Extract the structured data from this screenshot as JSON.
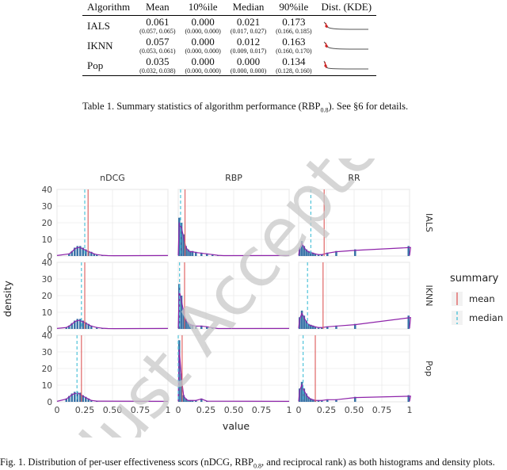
{
  "table": {
    "headers": [
      "Algorithm",
      "Mean",
      "10%ile",
      "Median",
      "90%ile",
      "Dist. (KDE)"
    ],
    "rows": [
      {
        "name": "IALS",
        "mean": "0.061",
        "mean_ci": "(0.057, 0.065)",
        "p10": "0.000",
        "p10_ci": "(0.000, 0.000)",
        "median": "0.021",
        "median_ci": "(0.017, 0.027)",
        "p90": "0.173",
        "p90_ci": "(0.166, 0.185)"
      },
      {
        "name": "IKNN",
        "mean": "0.057",
        "mean_ci": "(0.053, 0.061)",
        "p10": "0.000",
        "p10_ci": "(0.000, 0.000)",
        "median": "0.012",
        "median_ci": "(0.009, 0.017)",
        "p90": "0.163",
        "p90_ci": "(0.160, 0.170)"
      },
      {
        "name": "Pop",
        "mean": "0.035",
        "mean_ci": "(0.032, 0.038)",
        "p10": "0.000",
        "p10_ci": "(0.000, 0.000)",
        "median": "0.000",
        "median_ci": "(0.000, 0.000)",
        "p90": "0.134",
        "p90_ci": "(0.128, 0.160)"
      }
    ],
    "caption": {
      "prefix": "Table 1.  Summary statistics of algorithm performance (RBP",
      "sub": "0.8",
      "suffix": "). See §6 for details."
    }
  },
  "figure": {
    "col_facets": [
      "nDCG",
      "RBP",
      "RR"
    ],
    "row_facets": [
      "IALS",
      "IKNN",
      "Pop"
    ],
    "y_axis_label": "density",
    "x_axis_label": "value",
    "y_ticks": [
      "0",
      "10",
      "20",
      "30",
      "40"
    ],
    "x_ticks": [
      "0",
      "0.25",
      "0.50",
      "0.75",
      "1"
    ],
    "legend": {
      "title": "summary",
      "items": [
        {
          "label": "mean",
          "color": "#e06666"
        },
        {
          "label": "median",
          "color": "#4fc3d9"
        }
      ]
    },
    "watermark": "Just Accepted",
    "caption": {
      "prefix": "Fig. 1.  Distribution of per-user effectiveness scors (nDCG, RBP",
      "sub": "0.8",
      "suffix": ", and reciprocal rank) as both histograms and density plots."
    },
    "colors": {
      "hist": "#3a74a8",
      "kde": "#8e24aa",
      "mean": "#e06666",
      "median": "#4fc3d9",
      "panel_bg": "#ffffff",
      "grid": "#ebebeb",
      "watermark": "#c8c8c8"
    }
  },
  "chart_data": [
    {
      "type": "bar",
      "metric": "nDCG",
      "algorithm": "IALS",
      "x": [
        0.1,
        0.125,
        0.15,
        0.175,
        0.2,
        0.225,
        0.25,
        0.275,
        0.3,
        0.325,
        0.35,
        0.4,
        0.45,
        0.5
      ],
      "values": [
        1.5,
        3,
        5,
        6,
        6,
        5,
        4,
        3,
        2.5,
        1.5,
        1,
        0.5,
        0.3,
        0.2
      ],
      "mean": 0.28,
      "median": 0.25,
      "xlim": [
        0,
        1
      ],
      "ylim": [
        0,
        40
      ]
    },
    {
      "type": "bar",
      "metric": "nDCG",
      "algorithm": "IKNN",
      "x": [
        0.075,
        0.1,
        0.125,
        0.15,
        0.175,
        0.2,
        0.225,
        0.25,
        0.275,
        0.3,
        0.35,
        0.4,
        0.45,
        0.5
      ],
      "values": [
        1,
        2,
        3.5,
        5,
        6,
        6,
        5,
        4,
        3,
        2,
        1,
        0.5,
        0.3,
        0.2
      ],
      "mean": 0.25,
      "median": 0.22,
      "xlim": [
        0,
        1
      ],
      "ylim": [
        0,
        40
      ]
    },
    {
      "type": "bar",
      "metric": "nDCG",
      "algorithm": "Pop",
      "x": [
        0.075,
        0.1,
        0.125,
        0.15,
        0.175,
        0.2,
        0.225,
        0.25,
        0.275,
        0.3,
        0.35
      ],
      "values": [
        2,
        3.5,
        5,
        6,
        6,
        5.5,
        4,
        3,
        2,
        1,
        0.5
      ],
      "mean": 0.22,
      "median": 0.18,
      "xlim": [
        0,
        1
      ],
      "ylim": [
        0,
        40
      ]
    },
    {
      "type": "bar",
      "metric": "RBP",
      "algorithm": "IALS",
      "x": [
        0.0,
        0.02,
        0.04,
        0.06,
        0.08,
        0.1,
        0.12,
        0.15,
        0.2,
        0.25,
        0.3,
        0.35,
        0.4
      ],
      "values": [
        23,
        20,
        13,
        6,
        4,
        3,
        3,
        2.5,
        2,
        1.5,
        1,
        0.5,
        0.3
      ],
      "mean": 0.061,
      "median": 0.021,
      "xlim": [
        0,
        1
      ],
      "ylim": [
        0,
        40
      ]
    },
    {
      "type": "bar",
      "metric": "RBP",
      "algorithm": "IKNN",
      "x": [
        0.0,
        0.02,
        0.04,
        0.06,
        0.08,
        0.1,
        0.12,
        0.15,
        0.2,
        0.25,
        0.3,
        0.35
      ],
      "values": [
        27,
        20,
        12,
        6,
        4,
        3,
        2.5,
        2,
        2,
        1.5,
        0.8,
        0.3
      ],
      "mean": 0.057,
      "median": 0.012,
      "xlim": [
        0,
        1
      ],
      "ylim": [
        0,
        40
      ]
    },
    {
      "type": "bar",
      "metric": "RBP",
      "algorithm": "Pop",
      "x": [
        0.0,
        0.02,
        0.04,
        0.06,
        0.08,
        0.1,
        0.12,
        0.15,
        0.2,
        0.25
      ],
      "values": [
        37,
        17,
        4,
        2,
        1,
        1,
        1,
        1,
        2,
        0.5
      ],
      "mean": 0.035,
      "median": 0.0,
      "xlim": [
        0,
        1
      ],
      "ylim": [
        0,
        40
      ]
    },
    {
      "type": "bar",
      "metric": "RR",
      "algorithm": "IALS",
      "x": [
        0.0,
        0.02,
        0.04,
        0.06,
        0.08,
        0.1,
        0.12,
        0.14,
        0.17,
        0.2,
        0.25,
        0.33,
        0.5,
        1.0
      ],
      "values": [
        5,
        9,
        6,
        4,
        3,
        2.5,
        2,
        1.5,
        1,
        1,
        2,
        3,
        4,
        6
      ],
      "mean": 0.23,
      "median": 0.11,
      "xlim": [
        0,
        1
      ],
      "ylim": [
        0,
        40
      ]
    },
    {
      "type": "bar",
      "metric": "RR",
      "algorithm": "IKNN",
      "x": [
        0.0,
        0.02,
        0.04,
        0.06,
        0.08,
        0.1,
        0.12,
        0.14,
        0.17,
        0.2,
        0.25,
        0.33,
        0.5,
        1.0
      ],
      "values": [
        7,
        11,
        8,
        5,
        3,
        2.5,
        2,
        1.5,
        1,
        1,
        1.5,
        2,
        3,
        8
      ],
      "mean": 0.22,
      "median": 0.08,
      "xlim": [
        0,
        1
      ],
      "ylim": [
        0,
        40
      ]
    },
    {
      "type": "bar",
      "metric": "RR",
      "algorithm": "Pop",
      "x": [
        0.0,
        0.02,
        0.04,
        0.06,
        0.08,
        0.1,
        0.12,
        0.14,
        0.17,
        0.2,
        0.25,
        0.33,
        0.5,
        1.0
      ],
      "values": [
        8,
        12,
        8,
        5,
        3,
        2,
        1.5,
        1,
        1,
        1,
        1.5,
        1.5,
        3,
        4
      ],
      "mean": 0.15,
      "median": 0.04,
      "xlim": [
        0,
        1
      ],
      "ylim": [
        0,
        40
      ]
    }
  ]
}
